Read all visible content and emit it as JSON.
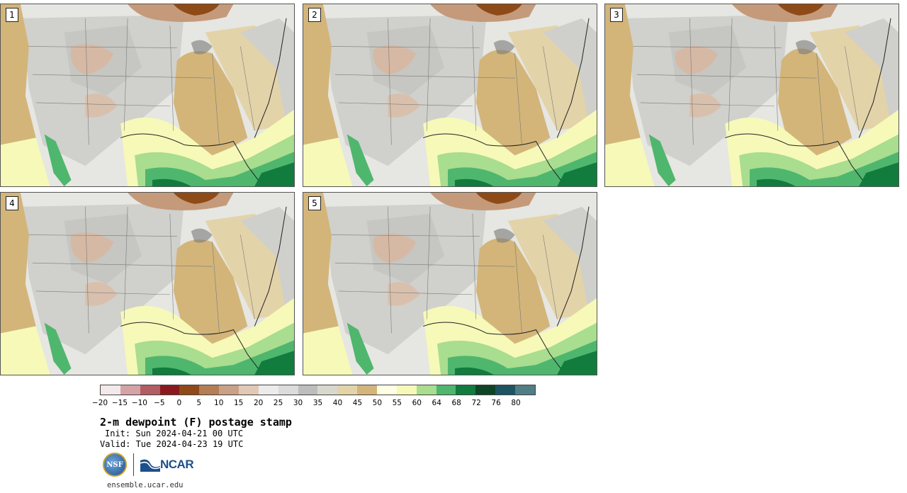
{
  "panels": [
    {
      "label": "1"
    },
    {
      "label": "2"
    },
    {
      "label": "3"
    },
    {
      "label": "4"
    },
    {
      "label": "5"
    }
  ],
  "colorbar": {
    "colors": [
      "#f3e8ea",
      "#d5a3a6",
      "#b25d62",
      "#8b1a1f",
      "#8e4a17",
      "#b47d54",
      "#c9a187",
      "#e2c9b6",
      "#ececec",
      "#dcdcdc",
      "#bdbdbd",
      "#d8d8cf",
      "#e3d3a9",
      "#d3b57a",
      "#fefee4",
      "#f6f9b8",
      "#a9dd8f",
      "#4fb66e",
      "#127b3e",
      "#0d4526",
      "#1d5462",
      "#4f7e85"
    ],
    "ticks": [
      "−20",
      "−15",
      "−10",
      "−5",
      "0",
      "5",
      "10",
      "15",
      "20",
      "25",
      "30",
      "35",
      "40",
      "45",
      "50",
      "55",
      "60",
      "64",
      "68",
      "72",
      "76",
      "80"
    ]
  },
  "title": "2-m dewpoint (F) postage stamp",
  "init": "Init: Sun 2024-04-21 00 UTC",
  "valid": "Valid: Tue 2024-04-23 19 UTC",
  "logos": {
    "nsf": "NSF",
    "ncar": "NCAR"
  },
  "footer": "ensemble.ucar.edu"
}
